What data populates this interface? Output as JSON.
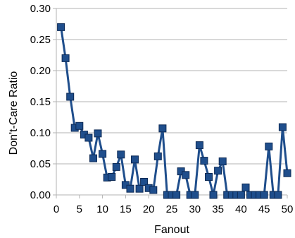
{
  "chart_data": {
    "type": "line",
    "title": "",
    "xlabel": "Fanout",
    "ylabel": "Don't-Care Ratio",
    "xlim": [
      0,
      50
    ],
    "ylim": [
      0,
      0.3
    ],
    "xticks": [
      "0",
      "5",
      "10",
      "15",
      "20",
      "25",
      "30",
      "35",
      "40",
      "45",
      "50"
    ],
    "yticks": [
      "0.00",
      "0.05",
      "0.10",
      "0.15",
      "0.20",
      "0.25",
      "0.30"
    ],
    "grid": "horizontal",
    "legend": "none",
    "marker": "square",
    "colors": {
      "line": "#1f4e8c",
      "marker_fill": "#1f4e8c",
      "marker_edge": "#0d2a55"
    },
    "series": [
      {
        "x": [
          1,
          2,
          3,
          4,
          5,
          6,
          7,
          8,
          9,
          10,
          11,
          12,
          13,
          14,
          15,
          16,
          17,
          18,
          19,
          20,
          21,
          22,
          23,
          24,
          25,
          26,
          27,
          28,
          29,
          30,
          31,
          32,
          33,
          34,
          35,
          36,
          37,
          38,
          39,
          40,
          41,
          42,
          43,
          44,
          45,
          46,
          47,
          48,
          49,
          50
        ],
        "values": [
          0.27,
          0.22,
          0.158,
          0.108,
          0.111,
          0.097,
          0.092,
          0.059,
          0.099,
          0.066,
          0.028,
          0.029,
          0.045,
          0.065,
          0.016,
          0.01,
          0.057,
          0.01,
          0.021,
          0.011,
          0.008,
          0.062,
          0.107,
          0.0,
          0.0,
          0.0,
          0.038,
          0.032,
          0.0,
          0.0,
          0.08,
          0.055,
          0.029,
          0.0,
          0.039,
          0.054,
          0.0,
          0.0,
          0.0,
          0.0,
          0.012,
          0.0,
          0.0,
          0.0,
          0.0,
          0.078,
          0.0,
          0.0,
          0.109,
          0.035
        ]
      }
    ]
  }
}
